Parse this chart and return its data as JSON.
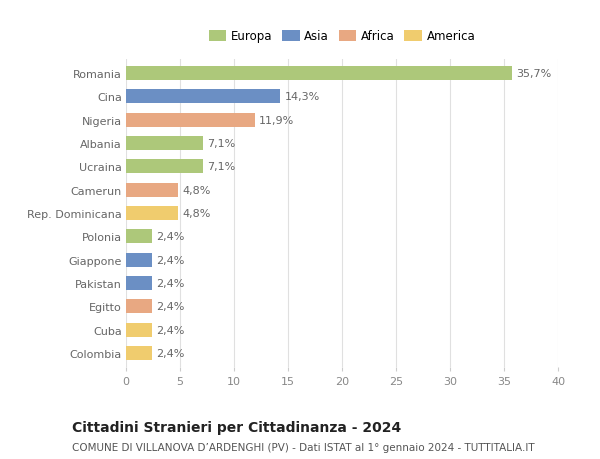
{
  "countries": [
    "Romania",
    "Cina",
    "Nigeria",
    "Albania",
    "Ucraina",
    "Camerun",
    "Rep. Dominicana",
    "Polonia",
    "Giappone",
    "Pakistan",
    "Egitto",
    "Cuba",
    "Colombia"
  ],
  "values": [
    35.7,
    14.3,
    11.9,
    7.1,
    7.1,
    4.8,
    4.8,
    2.4,
    2.4,
    2.4,
    2.4,
    2.4,
    2.4
  ],
  "labels": [
    "35,7%",
    "14,3%",
    "11,9%",
    "7,1%",
    "7,1%",
    "4,8%",
    "4,8%",
    "2,4%",
    "2,4%",
    "2,4%",
    "2,4%",
    "2,4%",
    "2,4%"
  ],
  "continents": [
    "Europa",
    "Asia",
    "Africa",
    "Europa",
    "Europa",
    "Africa",
    "America",
    "Europa",
    "Asia",
    "Asia",
    "Africa",
    "America",
    "America"
  ],
  "colors": {
    "Europa": "#adc87a",
    "Asia": "#6b8fc4",
    "Africa": "#e8a882",
    "America": "#f0cc6e"
  },
  "xlim": [
    0,
    40
  ],
  "xticks": [
    0,
    5,
    10,
    15,
    20,
    25,
    30,
    35,
    40
  ],
  "title": "Cittadini Stranieri per Cittadinanza - 2024",
  "subtitle": "COMUNE DI VILLANOVA D’ARDENGHI (PV) - Dati ISTAT al 1° gennaio 2024 - TUTTITALIA.IT",
  "background_color": "#ffffff",
  "grid_color": "#e0e0e0",
  "bar_height": 0.6,
  "label_fontsize": 8,
  "ytick_fontsize": 8,
  "xtick_fontsize": 8,
  "title_fontsize": 10,
  "subtitle_fontsize": 7.5,
  "legend_fontsize": 8.5
}
